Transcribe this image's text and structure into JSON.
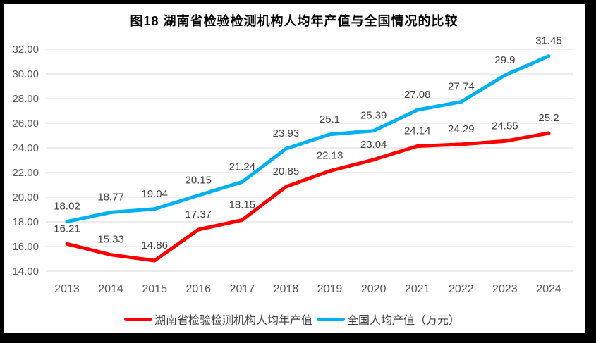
{
  "chart_data": {
    "type": "line",
    "title": "图18 湖南省检验检测机构人均年产值与全国情况的比较",
    "categories": [
      "2013",
      "2014",
      "2015",
      "2016",
      "2017",
      "2018",
      "2019",
      "2020",
      "2021",
      "2022",
      "2023",
      "2024"
    ],
    "series": [
      {
        "name": "湖南省检验检测机构人均年产值",
        "color": "#FF0000",
        "values": [
          16.21,
          15.33,
          14.86,
          17.37,
          18.15,
          20.85,
          22.13,
          23.04,
          24.14,
          24.29,
          24.55,
          25.2
        ]
      },
      {
        "name": "全国人均产值（万元）",
        "color": "#00B0F0",
        "values": [
          18.02,
          18.77,
          19.04,
          20.15,
          21.24,
          23.93,
          25.1,
          25.39,
          27.08,
          27.74,
          29.9,
          31.45
        ]
      }
    ],
    "xlabel": "",
    "ylabel": "",
    "ylim": [
      14,
      32
    ],
    "ytick_step": 2,
    "ytick_decimals": 2,
    "grid": true,
    "gridline_color": "#D9D9D9",
    "axis_label_color": "#595959",
    "data_label_color": "#404040",
    "legend_position": "bottom",
    "data_labels_visible": true
  }
}
